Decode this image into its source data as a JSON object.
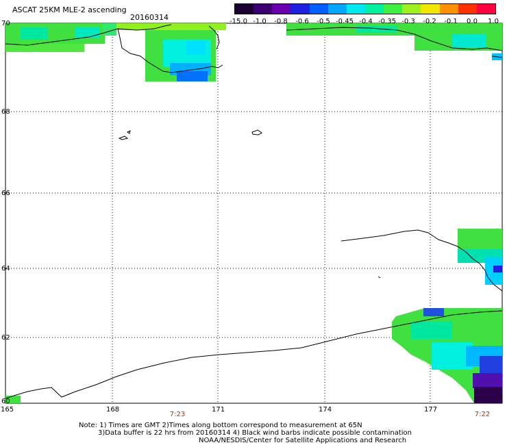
{
  "header": {
    "title": "ASCAT 25KM MLE-2 ascending",
    "date": "20160314"
  },
  "colorbar": {
    "labels": [
      "-15.0",
      "-1.0",
      "-0.8",
      "-0.6",
      "-0.5",
      "-0.45",
      "-0.4",
      "-0.35",
      "-0.3",
      "-0.2",
      "-0.1",
      "0.0",
      "1.0"
    ],
    "colors": [
      "#1a0030",
      "#3d0070",
      "#6a00b0",
      "#2020e0",
      "#0060ff",
      "#00a8ff",
      "#00e8f0",
      "#00f0a0",
      "#40f040",
      "#a0f020",
      "#f0e800",
      "#ff9000",
      "#ff3000",
      "#ff0040"
    ]
  },
  "axes": {
    "lat_labels": [
      "70",
      "68",
      "66",
      "64",
      "62",
      "60"
    ],
    "lon_labels": [
      "165",
      "168",
      "171",
      "174",
      "177"
    ]
  },
  "times": {
    "left": "7:23",
    "right": "7:22"
  },
  "notes": {
    "line1": "Note: 1) Times are GMT 2)Times along bottom correspond to measurement at 65N",
    "line2": "3)Data buffer is 22 hrs from 20160314 4) Black wind barbs indicate possible contamination",
    "line3": "NOAA/NESDIS/Center for Satellite Applications and Research"
  },
  "style": {
    "grid_color": "#000000",
    "time_color": "#b83000"
  }
}
